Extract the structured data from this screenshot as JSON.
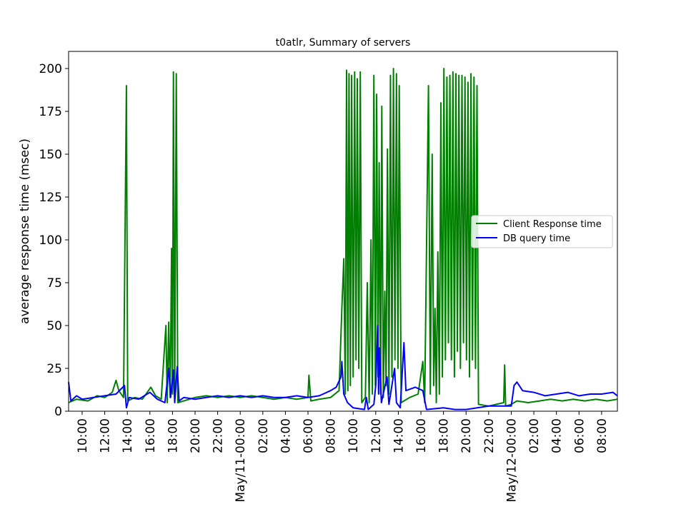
{
  "chart_data": {
    "type": "line",
    "title": "t0atlr, Summary of servers",
    "ylabel": "average response time (msec)",
    "xlabel": "",
    "ylim": [
      0,
      210
    ],
    "xlim": [
      "2023-05-10T08:48",
      "2023-05-12T09:24"
    ],
    "grid": false,
    "legend_position": "right",
    "y_ticks": [
      0,
      25,
      50,
      75,
      100,
      125,
      150,
      175,
      200
    ],
    "x_ticks": [
      {
        "t": "2023-05-10T10:00",
        "label": "10:00"
      },
      {
        "t": "2023-05-10T12:00",
        "label": "12:00"
      },
      {
        "t": "2023-05-10T14:00",
        "label": "14:00"
      },
      {
        "t": "2023-05-10T16:00",
        "label": "16:00"
      },
      {
        "t": "2023-05-10T18:00",
        "label": "18:00"
      },
      {
        "t": "2023-05-10T20:00",
        "label": "20:00"
      },
      {
        "t": "2023-05-10T22:00",
        "label": "22:00"
      },
      {
        "t": "2023-05-11T00:00",
        "label": "May/11-00:00"
      },
      {
        "t": "2023-05-11T02:00",
        "label": "02:00"
      },
      {
        "t": "2023-05-11T04:00",
        "label": "04:00"
      },
      {
        "t": "2023-05-11T06:00",
        "label": "06:00"
      },
      {
        "t": "2023-05-11T08:00",
        "label": "08:00"
      },
      {
        "t": "2023-05-11T10:00",
        "label": "10:00"
      },
      {
        "t": "2023-05-11T12:00",
        "label": "12:00"
      },
      {
        "t": "2023-05-11T14:00",
        "label": "14:00"
      },
      {
        "t": "2023-05-11T16:00",
        "label": "16:00"
      },
      {
        "t": "2023-05-11T18:00",
        "label": "18:00"
      },
      {
        "t": "2023-05-11T20:00",
        "label": "20:00"
      },
      {
        "t": "2023-05-11T22:00",
        "label": "22:00"
      },
      {
        "t": "2023-05-12T00:00",
        "label": "May/12-00:00"
      },
      {
        "t": "2023-05-12T02:00",
        "label": "02:00"
      },
      {
        "t": "2023-05-12T04:00",
        "label": "04:00"
      },
      {
        "t": "2023-05-12T06:00",
        "label": "06:00"
      },
      {
        "t": "2023-05-12T08:00",
        "label": "08:00"
      }
    ],
    "series": [
      {
        "name": "Client Response time",
        "color": "#008000",
        "points": [
          [
            "2023-05-10T08:48",
            5
          ],
          [
            "2023-05-10T09:30",
            7
          ],
          [
            "2023-05-10T10:30",
            6
          ],
          [
            "2023-05-10T11:20",
            9
          ],
          [
            "2023-05-10T12:00",
            8
          ],
          [
            "2023-05-10T12:40",
            11
          ],
          [
            "2023-05-10T13:00",
            18
          ],
          [
            "2023-05-10T13:15",
            12
          ],
          [
            "2023-05-10T13:40",
            8
          ],
          [
            "2023-05-10T13:55",
            190
          ],
          [
            "2023-05-10T14:02",
            6
          ],
          [
            "2023-05-10T14:40",
            8
          ],
          [
            "2023-05-10T15:20",
            7
          ],
          [
            "2023-05-10T16:05",
            14
          ],
          [
            "2023-05-10T16:30",
            9
          ],
          [
            "2023-05-10T17:00",
            7
          ],
          [
            "2023-05-10T17:25",
            50
          ],
          [
            "2023-05-10T17:32",
            5
          ],
          [
            "2023-05-10T17:40",
            52
          ],
          [
            "2023-05-10T17:48",
            8
          ],
          [
            "2023-05-10T17:55",
            95
          ],
          [
            "2023-05-10T18:00",
            10
          ],
          [
            "2023-05-10T18:05",
            198
          ],
          [
            "2023-05-10T18:12",
            8
          ],
          [
            "2023-05-10T18:20",
            197
          ],
          [
            "2023-05-10T18:28",
            5
          ],
          [
            "2023-05-10T19:00",
            6
          ],
          [
            "2023-05-10T20:00",
            8
          ],
          [
            "2023-05-10T21:00",
            9
          ],
          [
            "2023-05-10T22:00",
            8
          ],
          [
            "2023-05-10T23:00",
            9
          ],
          [
            "2023-05-11T00:00",
            8
          ],
          [
            "2023-05-11T01:00",
            9
          ],
          [
            "2023-05-11T02:00",
            8
          ],
          [
            "2023-05-11T03:00",
            7
          ],
          [
            "2023-05-11T04:00",
            8
          ],
          [
            "2023-05-11T05:00",
            7
          ],
          [
            "2023-05-11T06:00",
            8
          ],
          [
            "2023-05-11T06:05",
            21
          ],
          [
            "2023-05-11T06:15",
            6
          ],
          [
            "2023-05-11T07:00",
            7
          ],
          [
            "2023-05-11T08:00",
            8
          ],
          [
            "2023-05-11T08:45",
            12
          ],
          [
            "2023-05-11T09:00",
            60
          ],
          [
            "2023-05-11T09:10",
            89
          ],
          [
            "2023-05-11T09:18",
            10
          ],
          [
            "2023-05-11T09:25",
            199
          ],
          [
            "2023-05-11T09:32",
            12
          ],
          [
            "2023-05-11T09:38",
            197
          ],
          [
            "2023-05-11T09:45",
            15
          ],
          [
            "2023-05-11T09:52",
            196
          ],
          [
            "2023-05-11T10:00",
            20
          ],
          [
            "2023-05-11T10:08",
            198
          ],
          [
            "2023-05-11T10:15",
            30
          ],
          [
            "2023-05-11T10:22",
            194
          ],
          [
            "2023-05-11T10:30",
            25
          ],
          [
            "2023-05-11T10:38",
            198
          ],
          [
            "2023-05-11T10:46",
            5
          ],
          [
            "2023-05-11T11:05",
            8
          ],
          [
            "2023-05-11T11:15",
            75
          ],
          [
            "2023-05-11T11:25",
            5
          ],
          [
            "2023-05-11T11:35",
            100
          ],
          [
            "2023-05-11T11:42",
            10
          ],
          [
            "2023-05-11T11:50",
            196
          ],
          [
            "2023-05-11T11:58",
            15
          ],
          [
            "2023-05-11T12:05",
            185
          ],
          [
            "2023-05-11T12:12",
            20
          ],
          [
            "2023-05-11T12:18",
            145
          ],
          [
            "2023-05-11T12:26",
            10
          ],
          [
            "2023-05-11T12:32",
            178
          ],
          [
            "2023-05-11T12:40",
            8
          ],
          [
            "2023-05-11T12:48",
            70
          ],
          [
            "2023-05-11T12:55",
            15
          ],
          [
            "2023-05-11T13:02",
            153
          ],
          [
            "2023-05-11T13:10",
            10
          ],
          [
            "2023-05-11T13:18",
            196
          ],
          [
            "2023-05-11T13:26",
            20
          ],
          [
            "2023-05-11T13:34",
            200
          ],
          [
            "2023-05-11T13:42",
            30
          ],
          [
            "2023-05-11T13:50",
            197
          ],
          [
            "2023-05-11T13:58",
            25
          ],
          [
            "2023-05-11T14:05",
            190
          ],
          [
            "2023-05-11T14:15",
            5
          ],
          [
            "2023-05-11T15:00",
            8
          ],
          [
            "2023-05-11T15:45",
            10
          ],
          [
            "2023-05-11T16:10",
            29
          ],
          [
            "2023-05-11T16:20",
            5
          ],
          [
            "2023-05-11T16:40",
            190
          ],
          [
            "2023-05-11T16:50",
            10
          ],
          [
            "2023-05-11T17:00",
            150
          ],
          [
            "2023-05-11T17:08",
            15
          ],
          [
            "2023-05-11T17:15",
            60
          ],
          [
            "2023-05-11T17:22",
            5
          ],
          [
            "2023-05-11T17:30",
            93
          ],
          [
            "2023-05-11T17:38",
            10
          ],
          [
            "2023-05-11T17:46",
            180
          ],
          [
            "2023-05-11T17:54",
            20
          ],
          [
            "2023-05-11T18:02",
            200
          ],
          [
            "2023-05-11T18:10",
            30
          ],
          [
            "2023-05-11T18:18",
            195
          ],
          [
            "2023-05-11T18:26",
            40
          ],
          [
            "2023-05-11T18:34",
            196
          ],
          [
            "2023-05-11T18:42",
            30
          ],
          [
            "2023-05-11T18:50",
            198
          ],
          [
            "2023-05-11T18:58",
            20
          ],
          [
            "2023-05-11T19:06",
            197
          ],
          [
            "2023-05-11T19:14",
            35
          ],
          [
            "2023-05-11T19:22",
            196
          ],
          [
            "2023-05-11T19:30",
            25
          ],
          [
            "2023-05-11T19:38",
            196
          ],
          [
            "2023-05-11T19:46",
            40
          ],
          [
            "2023-05-11T19:54",
            195
          ],
          [
            "2023-05-11T20:02",
            30
          ],
          [
            "2023-05-11T20:10",
            192
          ],
          [
            "2023-05-11T20:18",
            20
          ],
          [
            "2023-05-11T20:26",
            197
          ],
          [
            "2023-05-11T20:34",
            30
          ],
          [
            "2023-05-11T20:42",
            195
          ],
          [
            "2023-05-11T20:50",
            25
          ],
          [
            "2023-05-11T20:58",
            190
          ],
          [
            "2023-05-11T21:06",
            4
          ],
          [
            "2023-05-11T22:00",
            3
          ],
          [
            "2023-05-11T22:40",
            4
          ],
          [
            "2023-05-11T23:20",
            5
          ],
          [
            "2023-05-11T23:25",
            27
          ],
          [
            "2023-05-11T23:30",
            3
          ],
          [
            "2023-05-12T00:00",
            4
          ],
          [
            "2023-05-12T00:30",
            6
          ],
          [
            "2023-05-12T01:30",
            5
          ],
          [
            "2023-05-12T02:30",
            6
          ],
          [
            "2023-05-12T03:30",
            7
          ],
          [
            "2023-05-12T04:30",
            6
          ],
          [
            "2023-05-12T05:30",
            7
          ],
          [
            "2023-05-12T06:30",
            6
          ],
          [
            "2023-05-12T07:30",
            7
          ],
          [
            "2023-05-12T08:30",
            6
          ],
          [
            "2023-05-12T09:24",
            7
          ]
        ]
      },
      {
        "name": "DB query time",
        "color": "#0000ff",
        "points": [
          [
            "2023-05-10T08:48",
            17
          ],
          [
            "2023-05-10T09:00",
            6
          ],
          [
            "2023-05-10T09:30",
            9
          ],
          [
            "2023-05-10T10:00",
            7
          ],
          [
            "2023-05-10T11:00",
            8
          ],
          [
            "2023-05-10T12:00",
            9
          ],
          [
            "2023-05-10T13:00",
            10
          ],
          [
            "2023-05-10T13:45",
            15
          ],
          [
            "2023-05-10T13:55",
            2
          ],
          [
            "2023-05-10T14:10",
            8
          ],
          [
            "2023-05-10T15:00",
            7
          ],
          [
            "2023-05-10T16:00",
            11
          ],
          [
            "2023-05-10T16:40",
            7
          ],
          [
            "2023-05-10T17:20",
            5
          ],
          [
            "2023-05-10T17:40",
            25
          ],
          [
            "2023-05-10T17:50",
            8
          ],
          [
            "2023-05-10T18:05",
            24
          ],
          [
            "2023-05-10T18:12",
            5
          ],
          [
            "2023-05-10T18:25",
            26
          ],
          [
            "2023-05-10T18:35",
            6
          ],
          [
            "2023-05-10T19:00",
            8
          ],
          [
            "2023-05-10T20:00",
            7
          ],
          [
            "2023-05-10T21:00",
            8
          ],
          [
            "2023-05-10T22:00",
            9
          ],
          [
            "2023-05-10T23:00",
            8
          ],
          [
            "2023-05-11T00:00",
            9
          ],
          [
            "2023-05-11T01:00",
            8
          ],
          [
            "2023-05-11T02:00",
            9
          ],
          [
            "2023-05-11T03:00",
            8
          ],
          [
            "2023-05-11T04:00",
            8
          ],
          [
            "2023-05-11T05:00",
            9
          ],
          [
            "2023-05-11T06:00",
            8
          ],
          [
            "2023-05-11T07:00",
            9
          ],
          [
            "2023-05-11T08:00",
            12
          ],
          [
            "2023-05-11T08:30",
            14
          ],
          [
            "2023-05-11T08:55",
            20
          ],
          [
            "2023-05-11T09:00",
            29
          ],
          [
            "2023-05-11T09:10",
            10
          ],
          [
            "2023-05-11T09:30",
            5
          ],
          [
            "2023-05-11T10:00",
            2
          ],
          [
            "2023-05-11T11:00",
            1
          ],
          [
            "2023-05-11T11:10",
            8
          ],
          [
            "2023-05-11T11:20",
            1
          ],
          [
            "2023-05-11T11:50",
            4
          ],
          [
            "2023-05-11T12:00",
            15
          ],
          [
            "2023-05-11T12:10",
            50
          ],
          [
            "2023-05-11T12:15",
            10
          ],
          [
            "2023-05-11T12:20",
            37
          ],
          [
            "2023-05-11T12:30",
            5
          ],
          [
            "2023-05-11T13:00",
            20
          ],
          [
            "2023-05-11T13:10",
            4
          ],
          [
            "2023-05-11T13:40",
            25
          ],
          [
            "2023-05-11T13:50",
            5
          ],
          [
            "2023-05-11T14:10",
            2
          ],
          [
            "2023-05-11T14:30",
            40
          ],
          [
            "2023-05-11T14:40",
            12
          ],
          [
            "2023-05-11T15:30",
            14
          ],
          [
            "2023-05-11T16:10",
            12
          ],
          [
            "2023-05-11T16:30",
            1
          ],
          [
            "2023-05-11T18:00",
            2
          ],
          [
            "2023-05-11T19:00",
            1
          ],
          [
            "2023-05-11T20:00",
            1
          ],
          [
            "2023-05-11T21:00",
            2
          ],
          [
            "2023-05-11T22:00",
            3
          ],
          [
            "2023-05-11T23:30",
            3
          ],
          [
            "2023-05-12T00:00",
            3
          ],
          [
            "2023-05-12T00:15",
            15
          ],
          [
            "2023-05-12T00:30",
            17
          ],
          [
            "2023-05-12T01:00",
            12
          ],
          [
            "2023-05-12T02:00",
            11
          ],
          [
            "2023-05-12T03:00",
            9
          ],
          [
            "2023-05-12T04:00",
            10
          ],
          [
            "2023-05-12T05:00",
            11
          ],
          [
            "2023-05-12T06:00",
            9
          ],
          [
            "2023-05-12T07:00",
            10
          ],
          [
            "2023-05-12T08:00",
            10
          ],
          [
            "2023-05-12T09:00",
            11
          ],
          [
            "2023-05-12T09:24",
            9
          ]
        ]
      }
    ]
  }
}
